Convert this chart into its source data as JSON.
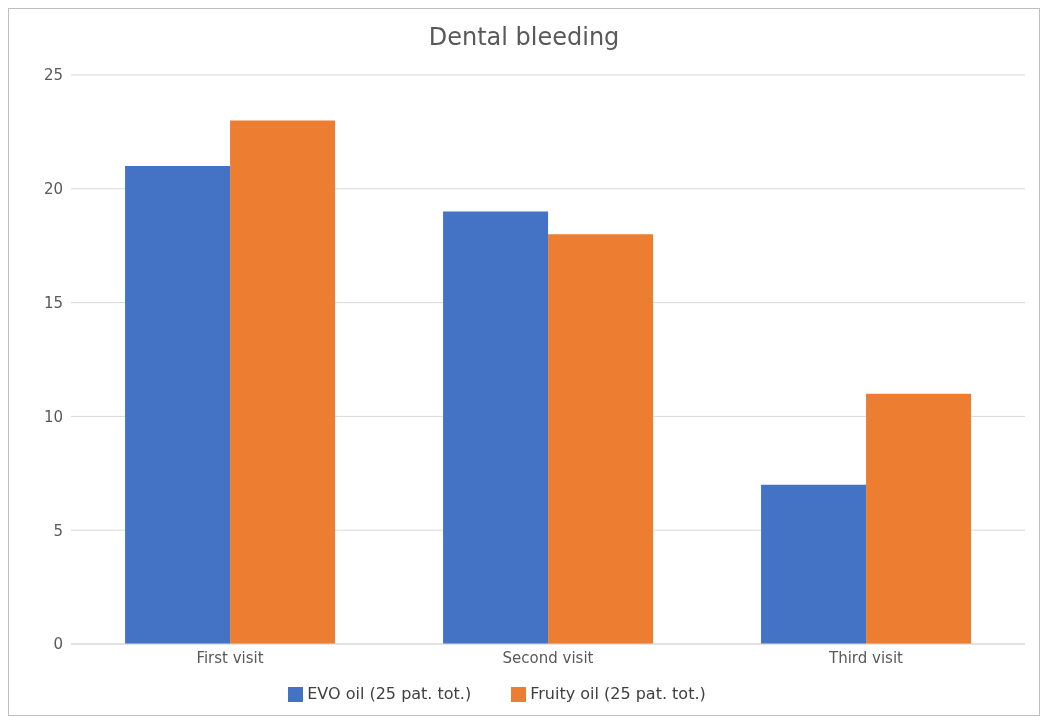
{
  "chart_data": {
    "type": "bar",
    "title": "Dental bleeding",
    "categories": [
      "First visit",
      "Second visit",
      "Third visit"
    ],
    "series": [
      {
        "name": "EVO oil (25 pat. tot.)",
        "color": "#4472c4",
        "values": [
          21,
          19,
          7
        ]
      },
      {
        "name": "Fruity oil (25 pat. tot.)",
        "color": "#ed7d31",
        "values": [
          23,
          18,
          11
        ]
      }
    ],
    "ylim": [
      0,
      25
    ],
    "yticks": [
      0,
      5,
      10,
      15,
      20,
      25
    ],
    "grid": "y",
    "legend": "bottom"
  }
}
